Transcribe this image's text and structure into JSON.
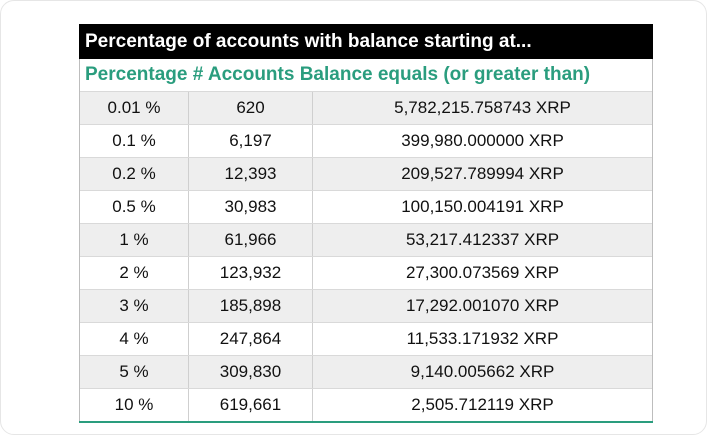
{
  "table": {
    "title": "Percentage of accounts with balance starting at...",
    "header": "Percentage # Accounts Balance equals (or greater than)",
    "rows": [
      {
        "percentage": "0.01 %",
        "accounts": "620",
        "balance": "5,782,215.758743 XRP"
      },
      {
        "percentage": "0.1 %",
        "accounts": "6,197",
        "balance": "399,980.000000 XRP"
      },
      {
        "percentage": "0.2 %",
        "accounts": "12,393",
        "balance": "209,527.789994 XRP"
      },
      {
        "percentage": "0.5 %",
        "accounts": "30,983",
        "balance": "100,150.004191 XRP"
      },
      {
        "percentage": "1 %",
        "accounts": "61,966",
        "balance": "53,217.412337 XRP"
      },
      {
        "percentage": "2 %",
        "accounts": "123,932",
        "balance": "27,300.073569 XRP"
      },
      {
        "percentage": "3 %",
        "accounts": "185,898",
        "balance": "17,292.001070 XRP"
      },
      {
        "percentage": "4 %",
        "accounts": "247,864",
        "balance": "11,533.171932 XRP"
      },
      {
        "percentage": "5 %",
        "accounts": "309,830",
        "balance": "9,140.005662 XRP"
      },
      {
        "percentage": "10 %",
        "accounts": "619,661",
        "balance": "2,505.712119 XRP"
      }
    ]
  },
  "colors": {
    "title_bg": "#000000",
    "header_text": "#2a9d7e",
    "row_stripe": "#eeeeee",
    "bottom_rule": "#2a9d7e"
  }
}
